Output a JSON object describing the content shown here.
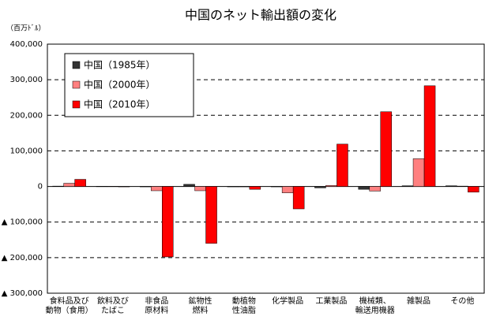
{
  "chart_data": {
    "type": "bar",
    "title": "中国のネット輸出額の変化",
    "y_unit_label": "（百万ﾄﾞﾙ）",
    "categories": [
      "食料品及び\n動物（食用）",
      "飲料及び\nたばこ",
      "非食品\n原材料",
      "鉱物性\n燃料",
      "動植物\n性油脂",
      "化学製品",
      "工業製品",
      "機械類、\n輸送用機器",
      "雑製品",
      "その他"
    ],
    "series": [
      {
        "name": "中国（1985年）",
        "color": "#333333",
        "values": [
          1000,
          500,
          -1000,
          6000,
          0,
          -1000,
          -4000,
          -8000,
          2000,
          2000
        ]
      },
      {
        "name": "中国（2000年）",
        "color": "#ff8080",
        "values": [
          9000,
          500,
          -12000,
          -12000,
          -1000,
          -18000,
          3000,
          -13000,
          78000,
          1000
        ]
      },
      {
        "name": "中国（2010年）",
        "color": "#ff0000",
        "values": [
          20000,
          0,
          -198000,
          -160000,
          -8000,
          -63000,
          119000,
          210000,
          283000,
          -16000
        ]
      }
    ],
    "ylim": [
      -300000,
      400000
    ],
    "yticks": [
      {
        "value": -300000,
        "label": "▲ 300,000"
      },
      {
        "value": -200000,
        "label": "▲ 200,000"
      },
      {
        "value": -100000,
        "label": "▲ 100,000"
      },
      0,
      {
        "value": 100000,
        "label": "100,000"
      },
      {
        "value": 200000,
        "label": "200,000"
      },
      {
        "value": 300000,
        "label": "300,000"
      },
      {
        "value": 400000,
        "label": "400,000"
      }
    ],
    "grid": true,
    "legend": "upper-left"
  }
}
